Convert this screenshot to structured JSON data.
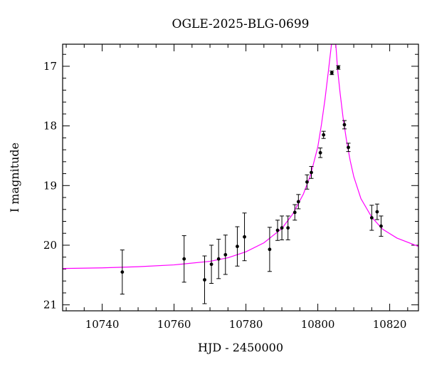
{
  "chart_data": {
    "type": "scatter",
    "title": "OGLE-2025-BLG-0699",
    "xlabel": "HJD - 2450000",
    "ylabel": "I magnitude",
    "xlim": [
      10729,
      10828
    ],
    "ylim": [
      21.1,
      16.63
    ],
    "y_inverted": true,
    "x_ticks": [
      10740,
      10760,
      10780,
      10800,
      10820
    ],
    "x_tick_labels": [
      "10740",
      "10760",
      "10780",
      "10800",
      "10820"
    ],
    "y_ticks": [
      17,
      18,
      19,
      20,
      21
    ],
    "y_tick_labels": [
      "17",
      "18",
      "19",
      "20",
      "21"
    ],
    "x_minor_step": 5,
    "y_minor_step": 0.2,
    "grid": false,
    "marker_color": "#000000",
    "model_color": "#ff00ff",
    "series": [
      {
        "x": [
          10745.6,
          10762.8,
          10768.5,
          10770.4,
          10772.4,
          10774.3,
          10777.6,
          10779.6,
          10786.6,
          10788.8,
          10790.0,
          10791.7,
          10793.6,
          10794.6,
          10797.0,
          10798.2,
          10800.7,
          10801.6,
          10803.9,
          10805.7,
          10807.4,
          10808.5,
          10815.0,
          10816.5,
          10817.6
        ],
        "y": [
          20.45,
          20.23,
          20.58,
          20.32,
          20.23,
          20.16,
          20.02,
          19.86,
          20.07,
          19.75,
          19.71,
          19.71,
          19.45,
          19.27,
          18.94,
          18.78,
          18.45,
          18.15,
          17.11,
          17.02,
          17.98,
          18.36,
          19.54,
          19.44,
          19.68
        ],
        "yerr": [
          0.37,
          0.39,
          0.4,
          0.32,
          0.33,
          0.33,
          0.33,
          0.4,
          0.37,
          0.17,
          0.2,
          0.2,
          0.13,
          0.12,
          0.12,
          0.1,
          0.08,
          0.06,
          0.03,
          0.03,
          0.07,
          0.07,
          0.21,
          0.13,
          0.17
        ]
      },
      {
        "x": [
          10729,
          10740,
          10750,
          10760,
          10770,
          10775,
          10780,
          10785,
          10790,
          10793,
          10796,
          10798,
          10800,
          10801,
          10802,
          10803,
          10803.8,
          10804.4,
          10804.6,
          10805.0,
          10805.5,
          10806.2,
          10807,
          10808,
          10809,
          10810,
          10812,
          10815,
          10818,
          10822,
          10828
        ],
        "y": [
          20.39,
          20.38,
          20.36,
          20.33,
          20.27,
          20.21,
          20.11,
          19.96,
          19.72,
          19.48,
          19.14,
          18.82,
          18.35,
          17.98,
          17.55,
          17.05,
          16.63,
          16.63,
          16.63,
          16.63,
          17.05,
          17.45,
          17.85,
          18.25,
          18.58,
          18.85,
          19.22,
          19.53,
          19.73,
          19.88,
          20.02
        ]
      }
    ]
  }
}
